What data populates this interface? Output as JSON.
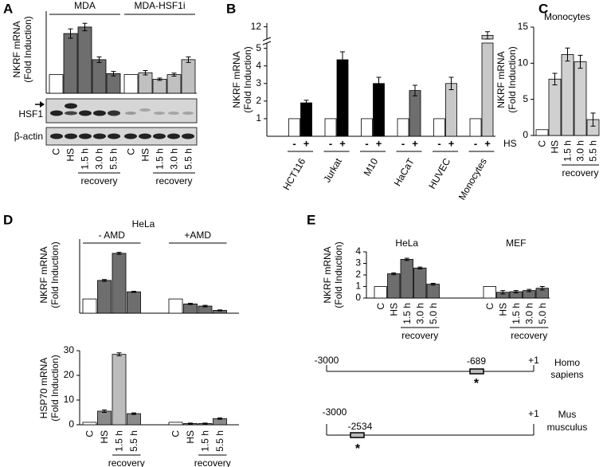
{
  "panels": [
    "A",
    "B",
    "C",
    "D",
    "E"
  ],
  "blot": {
    "labels": [
      "HSF1",
      "β-actin"
    ]
  },
  "promoters": [
    {
      "start": "-3000",
      "end": "+1",
      "site": "-689",
      "marker": "*",
      "species": [
        "Homo",
        "sapiens"
      ]
    },
    {
      "start": "-3000",
      "end": "+1",
      "site": "-2534",
      "marker": "*",
      "species": [
        "Mus",
        "musculus"
      ]
    }
  ],
  "chart_data": [
    {
      "type": "bar",
      "ylabel": [
        "NKRF mRNA",
        "(Fold Induction)"
      ],
      "categories": [
        "C",
        "HS",
        "1.5 h",
        "3.0 h",
        "5.5 h"
      ],
      "category_group": "recovery",
      "ylim": [
        0,
        4.4
      ],
      "series": [
        {
          "name": "MDA",
          "values": [
            1,
            3.2,
            3.55,
            1.8,
            1.05
          ],
          "errors": [
            null,
            0.25,
            0.2,
            0.15,
            0.12
          ],
          "colors": [
            "#ffffff",
            "#6e6e6e",
            "#6e6e6e",
            "#6e6e6e",
            "#6e6e6e"
          ]
        },
        {
          "name": "MDA-HSF1i",
          "values": [
            1,
            1.1,
            0.75,
            1.0,
            1.8
          ],
          "errors": [
            null,
            0.12,
            0.06,
            0.08,
            0.15
          ],
          "colors": [
            "#ffffff",
            "#c0c0c0",
            "#c0c0c0",
            "#c0c0c0",
            "#c0c0c0"
          ]
        }
      ]
    },
    {
      "type": "bar",
      "ylabel": [
        "NKRF mRNA",
        "(Fold Induction)"
      ],
      "categories": [
        "HCT116",
        "Jurkat",
        "M10",
        "HaCaT",
        "HUVEC",
        "Monocytes"
      ],
      "condition_label": "HS",
      "ylim": [
        0,
        12.3
      ],
      "axis_break": [
        5.3,
        11
      ],
      "yticks": [
        1,
        2,
        3,
        4,
        5,
        12
      ],
      "series": [
        {
          "name": "-",
          "values": [
            1,
            1,
            1,
            1,
            1,
            1
          ],
          "colors": [
            "#ffffff",
            "#ffffff",
            "#ffffff",
            "#ffffff",
            "#ffffff",
            "#ffffff"
          ]
        },
        {
          "name": "+",
          "values": [
            1.9,
            4.35,
            3.0,
            2.6,
            3.0,
            11.3
          ],
          "errors": [
            0.15,
            0.45,
            0.35,
            0.3,
            0.35,
            0.3
          ],
          "colors": [
            "#000000",
            "#000000",
            "#000000",
            "#6e6e6e",
            "#c8c8c8",
            "#c8c8c8"
          ]
        }
      ]
    },
    {
      "type": "bar",
      "title": "Monocytes",
      "ylabel": [
        "NKRF mRNA",
        "(Fold Induction)"
      ],
      "categories": [
        "C",
        "HS",
        "1.5 h",
        "3.0 h",
        "5.5 h"
      ],
      "category_group": "recovery",
      "ylim": [
        0,
        15
      ],
      "yticks": [
        0,
        5,
        10,
        15
      ],
      "series": [
        {
          "values": [
            0.8,
            7.8,
            11.2,
            10.2,
            2.2
          ],
          "errors": [
            null,
            0.8,
            0.9,
            0.9,
            0.9
          ],
          "colors": [
            "#ffffff",
            "#d0d0d0",
            "#d0d0d0",
            "#d0d0d0",
            "#d0d0d0"
          ]
        }
      ]
    },
    {
      "type": "bar",
      "title": "HeLa",
      "ylabel": [
        "NKRF mRNA",
        "(Fold Induction)"
      ],
      "ylim": [
        0,
        5.2
      ],
      "series": [
        {
          "name": "- AMD",
          "values": [
            1,
            2.3,
            4.2,
            1.5
          ],
          "errors": [
            null,
            0.06,
            0.07,
            0.04
          ],
          "colors": [
            "#ffffff",
            "#6e6e6e",
            "#6e6e6e",
            "#6e6e6e"
          ]
        },
        {
          "name": "+AMD",
          "values": [
            1,
            0.65,
            0.5,
            0.2
          ],
          "errors": [
            null,
            0.04,
            0.05,
            0.03
          ],
          "colors": [
            "#ffffff",
            "#6e6e6e",
            "#6e6e6e",
            "#6e6e6e"
          ]
        }
      ]
    },
    {
      "type": "bar",
      "ylabel": [
        "HSP70 mRNA",
        "(Fold Induction)"
      ],
      "categories": [
        "C",
        "HS",
        "1.5 h",
        "5.5 h"
      ],
      "category_group": "recovery",
      "ylim": [
        0,
        30
      ],
      "yticks": [
        0,
        10,
        20,
        30
      ],
      "series": [
        {
          "values": [
            1,
            5.5,
            28.5,
            4.5
          ],
          "errors": [
            null,
            0.5,
            0.6,
            0.3
          ],
          "colors": [
            "#ffffff",
            "#8a8a8a",
            "#bcbcbc",
            "#8a8a8a"
          ]
        },
        {
          "values": [
            1,
            0.5,
            0.5,
            2.5
          ],
          "errors": [
            null,
            0.2,
            0.2,
            0.3
          ],
          "colors": [
            "#ffffff",
            "#8a8a8a",
            "#8a8a8a",
            "#8a8a8a"
          ]
        }
      ]
    },
    {
      "type": "bar",
      "ylabel": [
        "NKRF mRNA",
        "(Fold Induction)"
      ],
      "categories": [
        "C",
        "HS",
        "1.5 h",
        "3.0 h",
        "5.0 h"
      ],
      "category_group": "recovery",
      "ylim": [
        0,
        4
      ],
      "yticks": [
        0,
        1,
        2,
        3,
        4
      ],
      "series": [
        {
          "name": "HeLa",
          "values": [
            1,
            2.1,
            3.35,
            2.6,
            1.2
          ],
          "errors": [
            null,
            0.08,
            0.1,
            0.08,
            0.08
          ],
          "colors": [
            "#ffffff",
            "#6e6e6e",
            "#6e6e6e",
            "#6e6e6e",
            "#6e6e6e"
          ]
        },
        {
          "name": "MEF",
          "values": [
            1,
            0.5,
            0.55,
            0.65,
            0.85
          ],
          "errors": [
            null,
            0.15,
            0.1,
            0.1,
            0.15
          ],
          "colors": [
            "#ffffff",
            "#6e6e6e",
            "#6e6e6e",
            "#6e6e6e",
            "#6e6e6e"
          ]
        }
      ]
    }
  ]
}
